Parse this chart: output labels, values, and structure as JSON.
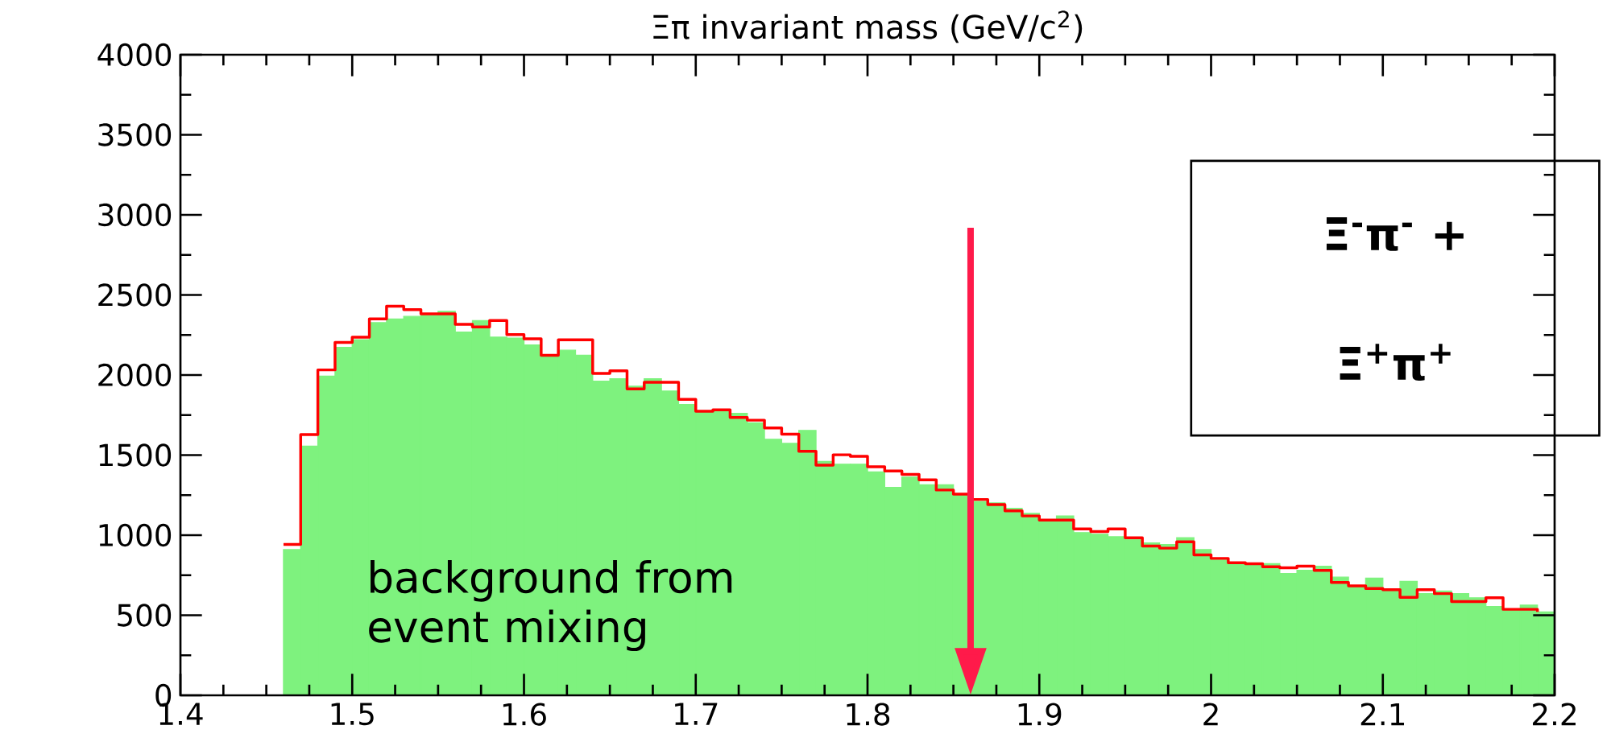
{
  "chart_data": {
    "type": "histogram",
    "title": "Ξπ invariant mass (GeV/c$^{2}$)",
    "bins": [
      1.46,
      1.47,
      1.48,
      1.49,
      1.5,
      1.51,
      1.52,
      1.53,
      1.54,
      1.55,
      1.56,
      1.57,
      1.58,
      1.59,
      1.6,
      1.61,
      1.62,
      1.63,
      1.64,
      1.65,
      1.66,
      1.67,
      1.68,
      1.69,
      1.7,
      1.71,
      1.72,
      1.73,
      1.74,
      1.75,
      1.76,
      1.77,
      1.78,
      1.79,
      1.8,
      1.81,
      1.82,
      1.83,
      1.84,
      1.85,
      1.86,
      1.87,
      1.88,
      1.89,
      1.9,
      1.91,
      1.92,
      1.93,
      1.94,
      1.95,
      1.96,
      1.97,
      1.98,
      1.99,
      2.0,
      2.01,
      2.02,
      2.03,
      2.04,
      2.05,
      2.06,
      2.07,
      2.08,
      2.09,
      2.1,
      2.11,
      2.12,
      2.13,
      2.14,
      2.15,
      2.16,
      2.17,
      2.18,
      2.19,
      2.2
    ],
    "series": [
      {
        "name": "background from event mixing",
        "color": "#7ef27e",
        "values": [
          910,
          1556,
          1993,
          2172,
          2220,
          2327,
          2350,
          2366,
          2372,
          2398,
          2268,
          2340,
          2236,
          2230,
          2188,
          2117,
          2155,
          2123,
          1961,
          1977,
          1930,
          1977,
          1900,
          1816,
          1767,
          1783,
          1760,
          1702,
          1599,
          1573,
          1654,
          1460,
          1443,
          1443,
          1395,
          1298,
          1362,
          1314,
          1314,
          1256,
          1210,
          1201,
          1168,
          1136,
          1094,
          1120,
          1016,
          1006,
          990,
          974,
          951,
          942,
          984,
          910,
          845,
          828,
          822,
          822,
          761,
          780,
          806,
          738,
          683,
          731,
          660,
          712,
          635,
          651,
          635,
          609,
          554,
          537,
          563,
          521
        ]
      },
      {
        "type": "step",
        "color": "#ff0000",
        "x": [
          1.46,
          1.47,
          1.48,
          1.49,
          1.5,
          1.51,
          1.52,
          1.53,
          1.54,
          1.55,
          1.56,
          1.57,
          1.58,
          1.59,
          1.6,
          1.61,
          1.62,
          1.63,
          1.64,
          1.65,
          1.66,
          1.67,
          1.68,
          1.69,
          1.7,
          1.71,
          1.72,
          1.73,
          1.74,
          1.75,
          1.76,
          1.77,
          1.78,
          1.79,
          1.8,
          1.81,
          1.82,
          1.83,
          1.84,
          1.85,
          1.86,
          1.87,
          1.88,
          1.89,
          1.9,
          1.91,
          1.92,
          1.93,
          1.94,
          1.95,
          1.96,
          1.97,
          1.98,
          1.99,
          2.0,
          2.01,
          2.02,
          2.03,
          2.04,
          2.05,
          2.06,
          2.07,
          2.08,
          2.09,
          2.1,
          2.11,
          2.12,
          2.13,
          2.14,
          2.15,
          2.16,
          2.17,
          2.18,
          2.19
        ],
        "values": [
          942,
          1628,
          2032,
          2204,
          2236,
          2350,
          2430,
          2408,
          2382,
          2382,
          2317,
          2300,
          2340,
          2252,
          2226,
          2123,
          2220,
          2220,
          2010,
          2026,
          1913,
          1955,
          1955,
          1848,
          1774,
          1783,
          1735,
          1718,
          1670,
          1631,
          1524,
          1437,
          1502,
          1492,
          1427,
          1401,
          1379,
          1346,
          1282,
          1256,
          1223,
          1191,
          1152,
          1120,
          1094,
          1094,
          1039,
          1023,
          1039,
          984,
          932,
          919,
          958,
          877,
          855,
          828,
          822,
          803,
          796,
          806,
          780,
          705,
          683,
          667,
          660,
          612,
          660,
          635,
          586,
          586,
          609,
          537,
          537,
          521
        ]
      }
    ],
    "xlim": [
      1.4,
      2.2
    ],
    "xticks": [
      1.4,
      1.5,
      1.6,
      1.7,
      1.8,
      1.9,
      2,
      2.1,
      2.2
    ],
    "ylim": [
      0,
      4000
    ],
    "yticks": [
      0,
      500,
      1000,
      1500,
      2000,
      2500,
      3000,
      3500,
      4000
    ],
    "ref_lines": [
      {
        "axis": "x",
        "value": 1.86,
        "color": "#ff1a4a"
      }
    ],
    "annotations": [
      "**Ξ$^{-}$π$^{-}$ +**",
      "**Ξ$^{+}$π$^{+}$**"
    ]
  }
}
